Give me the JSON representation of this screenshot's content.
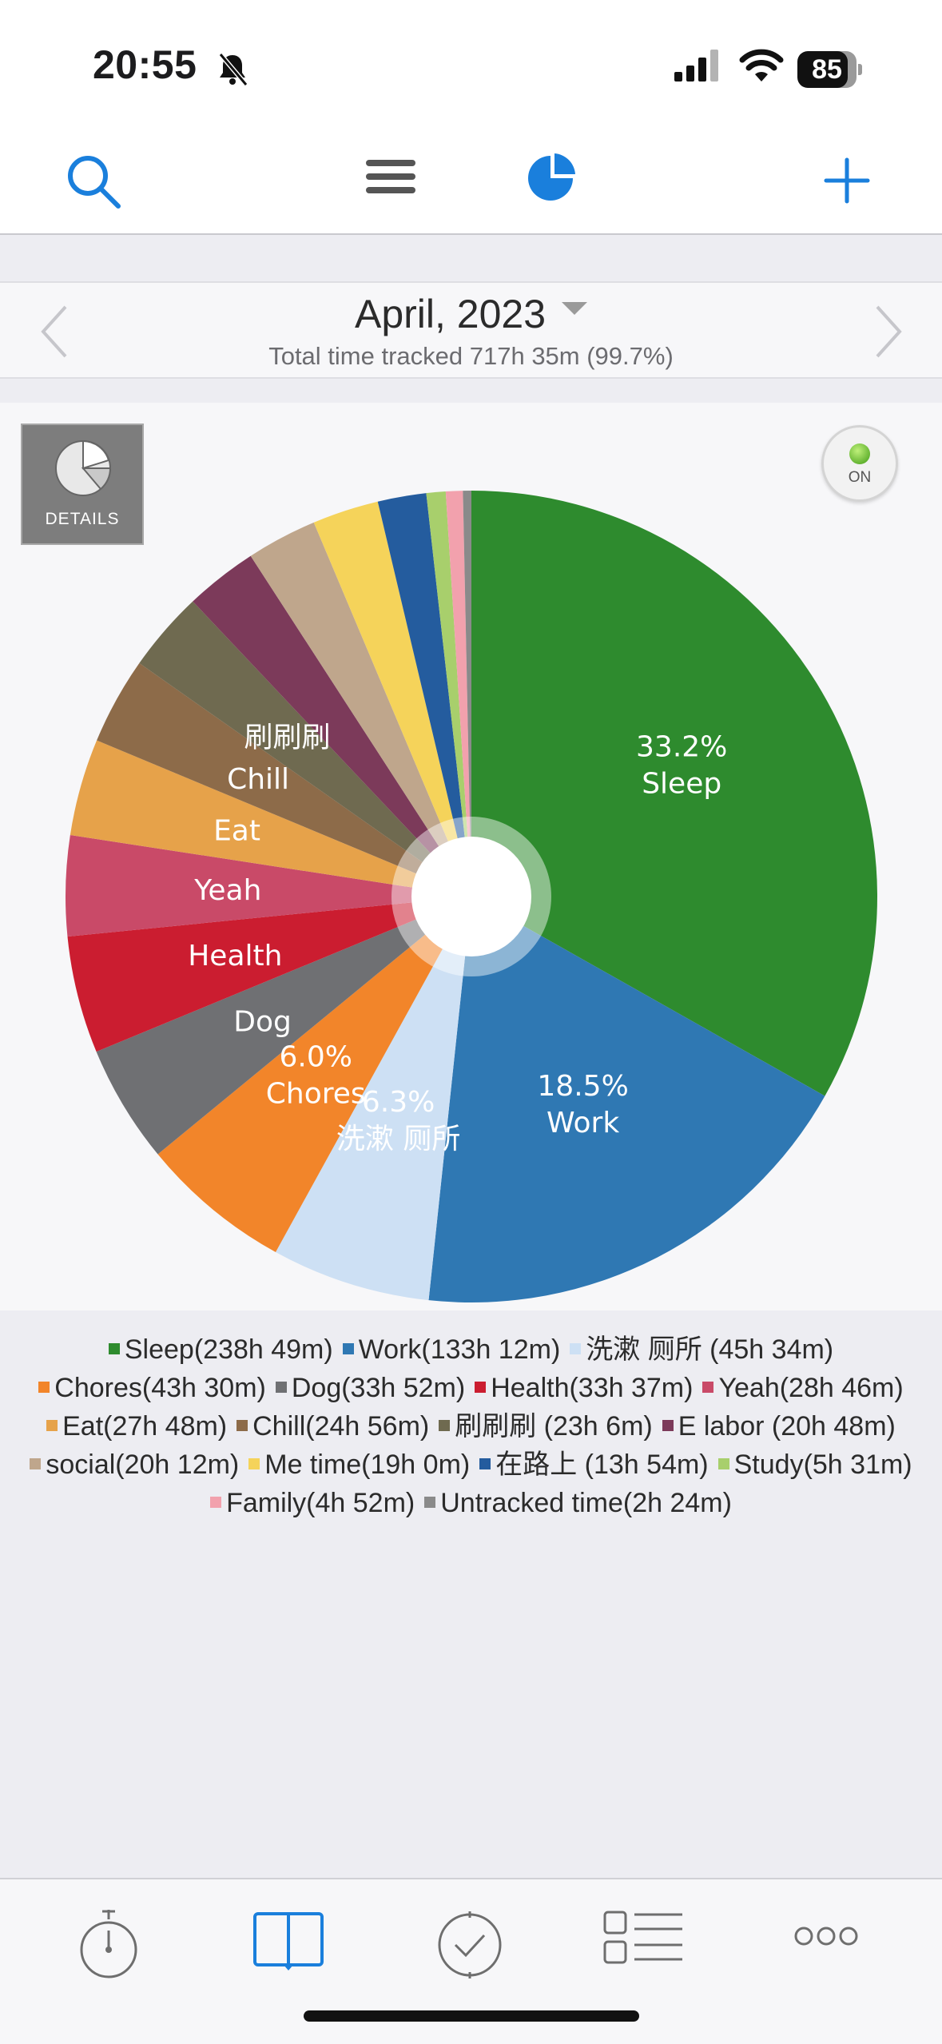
{
  "status_bar": {
    "time": "20:55",
    "battery": "85",
    "battery_level": 0.85
  },
  "nav": {
    "icons": [
      "search-icon",
      "menu-icon",
      "chart-icon",
      "plus-icon"
    ],
    "accent_color": "#1a7fdc"
  },
  "header": {
    "month": "April, 2023",
    "total": "Total time tracked 717h 35m (99.7%)"
  },
  "chart_controls": {
    "details_label": "DETAILS",
    "toggle_label": "ON"
  },
  "chart_data": {
    "type": "pie",
    "title": "",
    "slices": [
      {
        "label": "Sleep",
        "legend": "Sleep(238h 49m)",
        "hours": 238.817,
        "color": "#2e8b2e",
        "pie_label": "Sleep",
        "pct_label": "33.2%"
      },
      {
        "label": "Work",
        "legend": "Work(133h 12m)",
        "hours": 133.2,
        "color": "#2f78b3",
        "pie_label": "Work",
        "pct_label": "18.5%"
      },
      {
        "label": "洗漱 厕所",
        "legend": "洗漱 厕所 (45h 34m)",
        "hours": 45.567,
        "color": "#cde0f4",
        "pie_label": "洗漱 厕所",
        "pct_label": "6.3%"
      },
      {
        "label": "Chores",
        "legend": "Chores(43h 30m)",
        "hours": 43.5,
        "color": "#f2852a",
        "pie_label": "Chores",
        "pct_label": "6.0%"
      },
      {
        "label": "Dog",
        "legend": "Dog(33h 52m)",
        "hours": 33.867,
        "color": "#6f7073",
        "pie_label": "Dog",
        "pct_label": ""
      },
      {
        "label": "Health",
        "legend": "Health(33h 37m)",
        "hours": 33.617,
        "color": "#cb1d30",
        "pie_label": "Health",
        "pct_label": ""
      },
      {
        "label": "Yeah",
        "legend": "Yeah(28h 46m)",
        "hours": 28.767,
        "color": "#c94a68",
        "pie_label": "Yeah",
        "pct_label": ""
      },
      {
        "label": "Eat",
        "legend": "Eat(27h 48m)",
        "hours": 27.8,
        "color": "#e6a24a",
        "pie_label": "Eat",
        "pct_label": ""
      },
      {
        "label": "Chill",
        "legend": "Chill(24h 56m)",
        "hours": 24.933,
        "color": "#8d6b49",
        "pie_label": "Chill",
        "pct_label": ""
      },
      {
        "label": "刷刷刷",
        "legend": "刷刷刷 (23h 6m)",
        "hours": 23.1,
        "color": "#6f6a50",
        "pie_label": "刷刷刷",
        "pct_label": ""
      },
      {
        "label": "E labor",
        "legend": "E labor (20h 48m)",
        "hours": 20.8,
        "color": "#7c3a5a",
        "pie_label": "",
        "pct_label": ""
      },
      {
        "label": "social",
        "legend": "social(20h 12m)",
        "hours": 20.2,
        "color": "#bfa68c",
        "pie_label": "",
        "pct_label": ""
      },
      {
        "label": "Me time",
        "legend": "Me time(19h 0m)",
        "hours": 19.0,
        "color": "#f5d35a",
        "pie_label": "",
        "pct_label": ""
      },
      {
        "label": "在路上",
        "legend": "在路上 (13h 54m)",
        "hours": 13.9,
        "color": "#245c9e",
        "pie_label": "",
        "pct_label": ""
      },
      {
        "label": "Study",
        "legend": "Study(5h 31m)",
        "hours": 5.517,
        "color": "#a8cf6c",
        "pie_label": "",
        "pct_label": ""
      },
      {
        "label": "Family",
        "legend": "Family(4h 52m)",
        "hours": 4.867,
        "color": "#f2a1ad",
        "pie_label": "",
        "pct_label": ""
      },
      {
        "label": "Untracked time",
        "legend": "Untracked time(2h 24m)",
        "hours": 2.4,
        "color": "#8a8a8a",
        "pie_label": "",
        "pct_label": ""
      }
    ]
  },
  "tabbar": {
    "icons": [
      "timer-icon",
      "log-book-icon",
      "goals-clock-icon",
      "categories-list-icon",
      "more-icon"
    ]
  }
}
